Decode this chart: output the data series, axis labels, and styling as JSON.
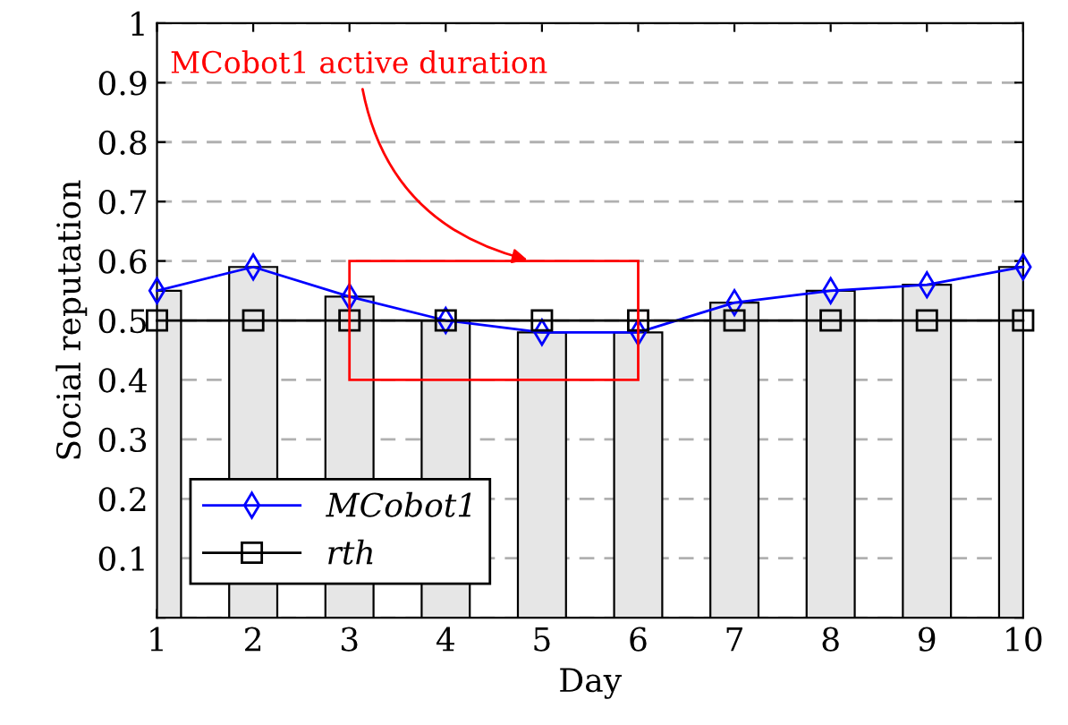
{
  "chart_data": {
    "type": "line",
    "xlabel": "Day",
    "ylabel": "Social reputation",
    "x": [
      1,
      2,
      3,
      4,
      5,
      6,
      7,
      8,
      9,
      10
    ],
    "series": [
      {
        "type": "bar",
        "color": "#e6e6e6",
        "values": [
          0.55,
          0.59,
          0.54,
          0.5,
          0.48,
          0.48,
          0.53,
          0.55,
          0.56,
          0.59
        ]
      },
      {
        "name": "MCobot1",
        "color": "#0000ff",
        "marker": "diamond",
        "values": [
          0.55,
          0.59,
          0.54,
          0.5,
          0.48,
          0.48,
          0.53,
          0.55,
          0.56,
          0.59
        ]
      },
      {
        "name": "rth",
        "color": "#000000",
        "marker": "square",
        "values": [
          0.5,
          0.5,
          0.5,
          0.5,
          0.5,
          0.5,
          0.5,
          0.5,
          0.5,
          0.5
        ]
      }
    ],
    "xlim": [
      1,
      10
    ],
    "xticks": [
      1,
      2,
      3,
      4,
      5,
      6,
      7,
      8,
      9,
      10
    ],
    "ylim": [
      0,
      1
    ],
    "yticks": [
      {
        "value": 0,
        "label": null
      },
      0.1,
      0.2,
      0.3,
      0.4,
      0.5,
      0.6,
      0.7,
      0.8,
      0.9,
      1
    ],
    "grid": "y",
    "legend": "bottom left",
    "annotations": [
      "MCobot1 active duration"
    ]
  }
}
